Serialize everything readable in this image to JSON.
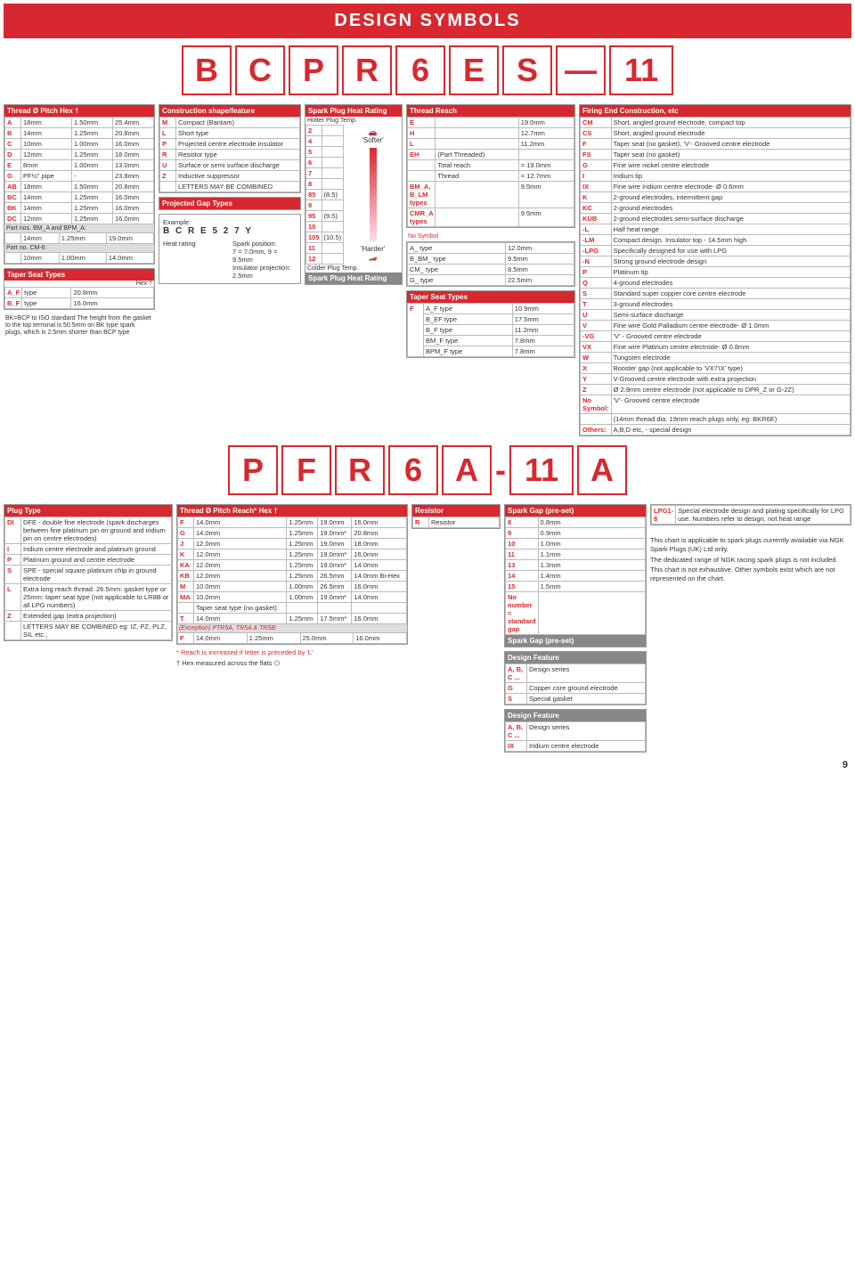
{
  "header": "DESIGN SYMBOLS",
  "code": [
    "B",
    "C",
    "P",
    "R",
    "6",
    "E",
    "S",
    "—",
    "11"
  ],
  "thread_dia": {
    "title": "Thread Ø   Pitch   Hex †",
    "rows": [
      [
        "A",
        "18mm",
        "1.50mm",
        "25.4mm"
      ],
      [
        "B",
        "14mm",
        "1.25mm",
        "20.8mm"
      ],
      [
        "C",
        "10mm",
        "1.00mm",
        "16.0mm"
      ],
      [
        "D",
        "12mm",
        "1.25mm",
        "18.0mm"
      ],
      [
        "E",
        "8mm",
        "1.00mm",
        "13.0mm"
      ],
      [
        "G",
        "PF½\" pipe",
        "-",
        "23.8mm"
      ],
      [
        "AB",
        "18mm",
        "1.50mm",
        "20.8mm"
      ],
      [
        "BC",
        "14mm",
        "1.25mm",
        "16.0mm"
      ],
      [
        "BK",
        "14mm",
        "1.25mm",
        "16.0mm"
      ],
      [
        "DC",
        "12mm",
        "1.25mm",
        "16.0mm"
      ]
    ],
    "part_nos": "Part nos. BM_A and BPM_A:",
    "part_row": [
      "",
      "14mm",
      "1.25mm",
      "19.0mm"
    ],
    "part_cm6": "Part no. CM-6:",
    "cm6_row": [
      "",
      "10mm",
      "1.00mm",
      "14.0mm"
    ]
  },
  "taper_seat_left": {
    "title": "Taper Seat Types",
    "sub": "Hex †",
    "rows": [
      [
        "A_F",
        "type",
        "20.8mm"
      ],
      [
        "B_F",
        "type",
        "16.0mm"
      ]
    ],
    "note": "BK=BCP to ISO standard\nThe height from the gasket to the top terminal is 50.5mm on BK type spark plugs, which is 2.5mm shorter than BCP type"
  },
  "construction": {
    "title": "Construction shape/feature",
    "rows": [
      [
        "M",
        "Compact (Bantam)"
      ],
      [
        "L",
        "Short type"
      ],
      [
        "P",
        "Projected centre electrode insulator"
      ],
      [
        "R",
        "Resistor type"
      ],
      [
        "U",
        "Surface or semi surface discharge"
      ],
      [
        "Z",
        "Inductive suppressor"
      ],
      [
        "",
        "LETTERS MAY BE COMBINED"
      ]
    ]
  },
  "projected_gap": {
    "title": "Projected Gap Types",
    "example_label": "Example:",
    "example_code": "B C R E 5 2 7 Y",
    "heat_label": "Heat rating",
    "spark_label": "Spark position:",
    "spark_note": "7 = 7.0mm, 9 = 9.5mm",
    "ins_label": "Insulator projection: 2.5mm"
  },
  "heat_rating": {
    "title_top": "Spark Plug Heat Rating",
    "hotter": "Hotter Plug Temp.",
    "softer": "'Softer'",
    "harder": "'Harder'",
    "rows": [
      [
        "2",
        ""
      ],
      [
        "4",
        ""
      ],
      [
        "5",
        ""
      ],
      [
        "6",
        ""
      ],
      [
        "7",
        ""
      ],
      [
        "8",
        ""
      ],
      [
        "85",
        "(8.5)"
      ],
      [
        "9",
        ""
      ],
      [
        "95",
        "(9.5)"
      ],
      [
        "10",
        ""
      ],
      [
        "105",
        "(10.5)"
      ],
      [
        "11",
        ""
      ],
      [
        "12",
        ""
      ]
    ],
    "colder": "Colder Plug Temp.",
    "title_bot": "Spark Plug Heat Rating"
  },
  "thread_reach": {
    "title": "Thread Reach",
    "rows": [
      [
        "E",
        "",
        "19.0mm"
      ],
      [
        "H",
        "",
        "12.7mm"
      ],
      [
        "L",
        "",
        "11.2mm"
      ],
      [
        "EH",
        "(Part Threaded)",
        ""
      ],
      [
        "",
        "Total reach",
        "= 19.0mm"
      ],
      [
        "",
        "Thread",
        "= 12.7mm"
      ],
      [
        "BM_A, B_LM types",
        "",
        "9.5mm"
      ],
      [
        "CMR_A types",
        "",
        "9.5mm"
      ]
    ],
    "no_symbol": "No Symbol",
    "ns_rows": [
      [
        "A_ type",
        "12.0mm"
      ],
      [
        "B_BM_ type",
        "9.5mm"
      ],
      [
        "CM_ type",
        "8.5mm"
      ],
      [
        "G_ type",
        "22.5mm"
      ]
    ],
    "taper_title": "Taper Seat Types",
    "taper_code": "F",
    "taper_rows": [
      [
        "A_F type",
        "10.9mm"
      ],
      [
        "B_EF type",
        "17.5mm"
      ],
      [
        "B_F type",
        "11.2mm"
      ],
      [
        "BM_F type",
        "7.8mm"
      ],
      [
        "BPM_F type",
        "7.8mm"
      ]
    ]
  },
  "firing_end": {
    "title": "Firing End Construction, etc",
    "rows": [
      [
        "CM",
        "Short, angled ground electrode, compact top"
      ],
      [
        "CS",
        "Short, angled ground electrode"
      ],
      [
        "F",
        "Taper seat (no gasket), 'V'- Grooved centre electrode"
      ],
      [
        "FS",
        "Taper seat (no gasket)"
      ],
      [
        "G",
        "Fine wire nickel centre electrode"
      ],
      [
        "I",
        "Iridium tip"
      ],
      [
        "IX",
        "Fine wire Iridium centre electrode- Ø 0.6mm"
      ],
      [
        "K",
        "2-ground electrodes, intermittent gap"
      ],
      [
        "KC",
        "2-ground electrodes"
      ],
      [
        "KUB",
        "2-ground electrodes semi-surface discharge"
      ],
      [
        "-L",
        "Half heat range"
      ],
      [
        "-LM",
        "Compact design. Insulator top - 14.5mm high"
      ],
      [
        "-LPG",
        "Specifically designed for use with LPG"
      ],
      [
        "-N",
        "Strong ground electrode design"
      ],
      [
        "P",
        "Platinum tip"
      ],
      [
        "Q",
        "4-ground electrodes"
      ],
      [
        "S",
        "Standard super copper core centre electrode"
      ],
      [
        "T",
        "3-ground electrodes"
      ],
      [
        "U",
        "Semi-surface discharge"
      ],
      [
        "V",
        "Fine wire Gold Palladium centre electrode- Ø 1.0mm"
      ],
      [
        "-VG",
        "'V' - Grooved centre electrode"
      ],
      [
        "VX",
        "Fine wire Platinum centre electrode- Ø 0.8mm"
      ],
      [
        "W",
        "Tungsten electrode"
      ],
      [
        "X",
        "Booster gap (not applicable to 'VX'/'IX' type)"
      ],
      [
        "Y",
        "V-Grooved centre electrode with extra projection"
      ],
      [
        "Z",
        "Ø 2.9mm centre electrode (not applicable to DPR_Z or G-2Z)"
      ],
      [
        "No Symbol:",
        "'V'- Grooved centre electrode"
      ],
      [
        "",
        "(14mm thread dia. 19mm reach plugs only, eg: BKR6E)"
      ],
      [
        "Others:",
        "A,B,D etc, - special design"
      ]
    ]
  },
  "code2": [
    "P",
    "F",
    "R",
    "6",
    "A",
    "-",
    "11",
    "A"
  ],
  "plug_type": {
    "title": "Plug Type",
    "rows": [
      [
        "DI",
        "DFE - double fine electrode (spark discharges between fine platinum pin on ground and iridium pin on centre electrodes)"
      ],
      [
        "I",
        "Iridium centre electrode and platinum ground"
      ],
      [
        "P",
        "Platinum ground and centre electrode"
      ],
      [
        "S",
        "SPE - special square platinum chip in ground electrode"
      ],
      [
        "L",
        "Extra long reach thread. 26.5mm: gasket type or 25mm: taper seat type (not applicable to LR8B or all LPG numbers)"
      ],
      [
        "Z",
        "Extended gap (extra projection)"
      ],
      [
        "",
        "LETTERS MAY BE COMBINED eg: IZ, PZ, PLZ, SIL etc.,"
      ]
    ]
  },
  "thread_pitch": {
    "title": "Thread Ø  Pitch  Reach*  Hex †",
    "rows": [
      [
        "F",
        "14.0mm",
        "1.25mm",
        "19.0mm",
        "16.0mm"
      ],
      [
        "G",
        "14.0mm",
        "1.25mm",
        "19.0mm*",
        "20.8mm"
      ],
      [
        "J",
        "12.0mm",
        "1.25mm",
        "19.0mm",
        "18.0mm"
      ],
      [
        "K",
        "12.0mm",
        "1.25mm",
        "19.0mm*",
        "16.0mm"
      ],
      [
        "KA",
        "12.0mm",
        "1.25mm",
        "19.0mm*",
        "14.0mm"
      ],
      [
        "KB",
        "12.0mm",
        "1.25mm",
        "26.5mm",
        "14.0mm Bi-Hex"
      ],
      [
        "M",
        "10.0mm",
        "1.00mm",
        "26.5mm",
        "16.0mm"
      ],
      [
        "MA",
        "10.0mm",
        "1.00mm",
        "19.0mm*",
        "14.0mm"
      ],
      [
        "",
        "Taper seat type (no gasket)",
        "",
        "",
        ""
      ],
      [
        "T",
        "14.0mm",
        "1.25mm",
        "17.5mm*",
        "16.0mm"
      ]
    ],
    "exception": "(Exception) PTR5A, TR5A & TR5B:",
    "exc_row": [
      "F",
      "14.0mm",
      "1.25mm",
      "25.0mm",
      "16.0mm"
    ],
    "foot1": "* Reach is increased if letter is preceded by 'L'",
    "foot2": "† Hex measured across the flats"
  },
  "resistor": {
    "title": "Resistor",
    "rows": [
      [
        "R",
        "Resistor"
      ]
    ]
  },
  "spark_gap": {
    "title": "Spark Gap (pre-set)",
    "rows": [
      [
        "8",
        "0.8mm"
      ],
      [
        "9",
        "0.9mm"
      ],
      [
        "10",
        "1.0mm"
      ],
      [
        "11",
        "1.1mm"
      ],
      [
        "13",
        "1.3mm"
      ],
      [
        "14",
        "1.4mm"
      ],
      [
        "15",
        "1.5mm"
      ],
      [
        "No number = standard gap",
        ""
      ]
    ],
    "title2": "Spark Gap (pre-set)"
  },
  "design_feat1": {
    "title": "Design Feature",
    "rows": [
      [
        "A, B, C ...",
        "Design series"
      ],
      [
        "G",
        "Copper core ground electrode"
      ],
      [
        "S",
        "Special gasket"
      ]
    ]
  },
  "design_feat2": {
    "title": "Design Feature",
    "rows": [
      [
        "A, B, C ...",
        "Design series"
      ],
      [
        "IX",
        "Iridium centre electrode"
      ]
    ]
  },
  "lpg": {
    "code": "LPG1-8",
    "text": "Special electrode design and plating specifically for LPG use. Numbers refer to design, not heat range"
  },
  "disclaimer": [
    "This chart is applicable to spark plugs currently available via NGK Spark Plugs (UK) Ltd only.",
    "The dedicated range of NGK racing spark plugs is not included.",
    "This chart is not exhaustive. Other symbols exist which are not represented on the chart."
  ],
  "page": "9"
}
